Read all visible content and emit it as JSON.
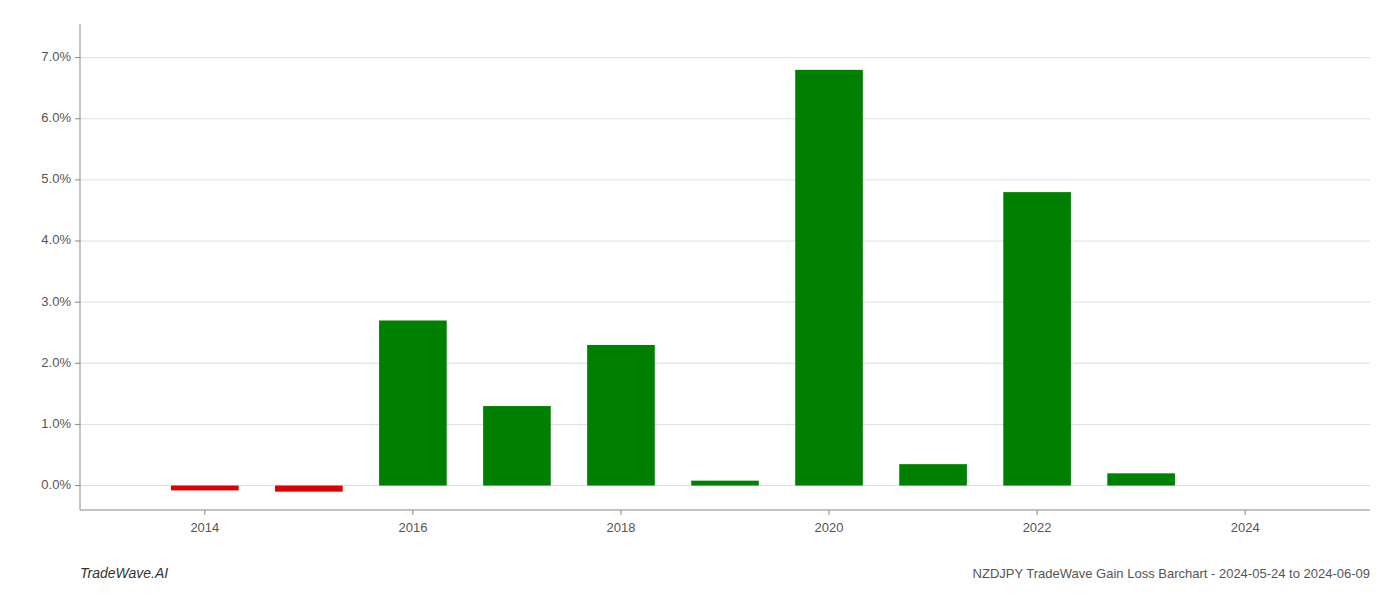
{
  "chart_data": {
    "type": "bar",
    "title": "NZDJPY TradeWave Gain Loss Barchart - 2024-05-24 to 2024-06-09",
    "annotations": [
      "TradeWave.AI"
    ],
    "x": [
      2014,
      2015,
      2016,
      2017,
      2018,
      2019,
      2020,
      2021,
      2022,
      2023
    ],
    "values": [
      -0.0008,
      -0.001,
      0.027,
      0.013,
      0.023,
      0.0008,
      0.068,
      0.0035,
      0.048,
      0.002
    ],
    "colors": [
      "#dd0000",
      "#dd0000",
      "#008000",
      "#008000",
      "#008000",
      "#008000",
      "#008000",
      "#008000",
      "#008000",
      "#008000"
    ],
    "xlim": [
      2012.8,
      2025.2
    ],
    "xticks": [
      2014,
      2016,
      2018,
      2020,
      2022,
      2024
    ],
    "ylim": [
      -0.004,
      0.0755
    ],
    "yticks": [
      {
        "value": 0.0,
        "label": "0.0%"
      },
      {
        "value": 0.01,
        "label": "1.0%"
      },
      {
        "value": 0.02,
        "label": "2.0%"
      },
      {
        "value": 0.03,
        "label": "3.0%"
      },
      {
        "value": 0.04,
        "label": "4.0%"
      },
      {
        "value": 0.05,
        "label": "5.0%"
      },
      {
        "value": 0.06,
        "label": "6.0%"
      },
      {
        "value": 0.07,
        "label": "7.0%"
      }
    ],
    "grid": true
  }
}
